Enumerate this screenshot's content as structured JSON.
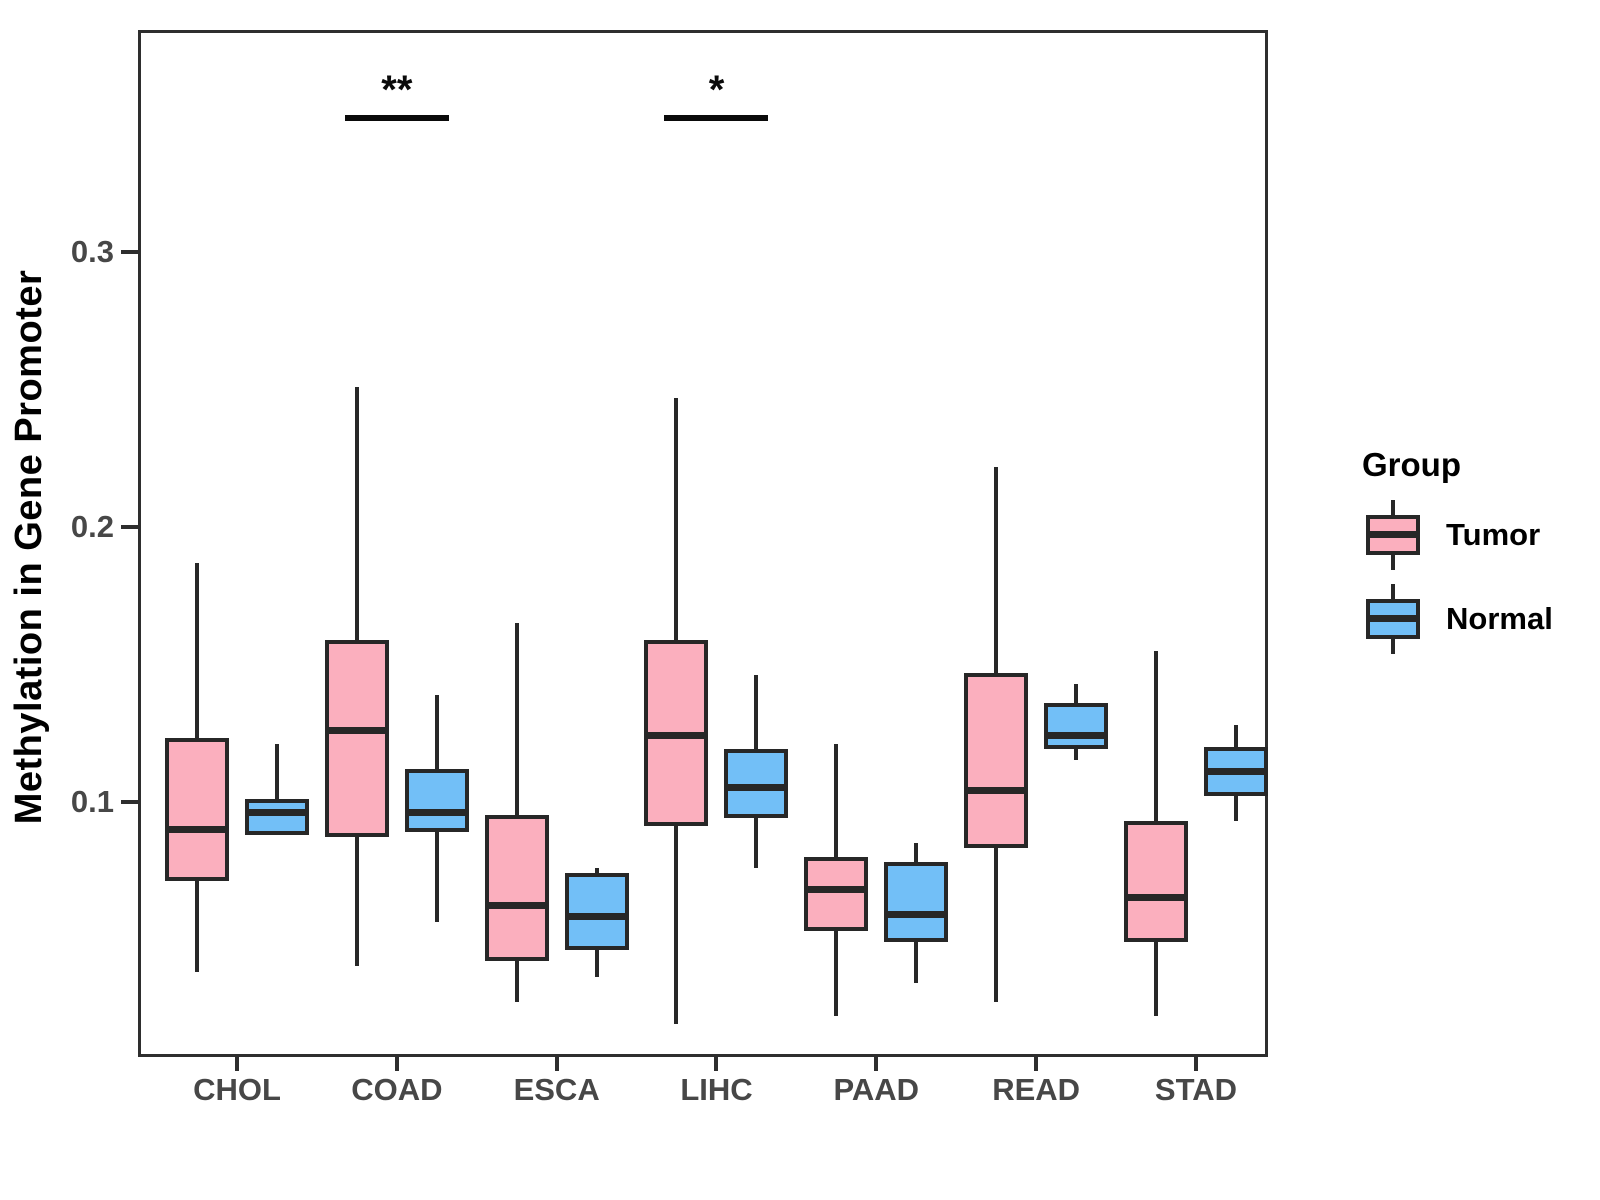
{
  "chart_data": {
    "type": "boxplot",
    "title": "",
    "ylabel": "Methylation in Gene Promoter",
    "xlabel": "",
    "categories": [
      "CHOL",
      "COAD",
      "ESCA",
      "LIHC",
      "PAAD",
      "READ",
      "STAD"
    ],
    "y_ticks": [
      {
        "label": "0.1",
        "value": 0.1
      },
      {
        "label": "0.2",
        "value": 0.2
      },
      {
        "label": "0.3",
        "value": 0.3
      }
    ],
    "ylim": [
      0.007,
      0.381
    ],
    "grid": "off",
    "box_outline_color": "#272727",
    "legend": {
      "title": "Group",
      "position": "right",
      "entries": [
        {
          "label": "Tumor",
          "color": "#FBAFBE"
        },
        {
          "label": "Normal",
          "color": "#72BFF7"
        }
      ]
    },
    "series": [
      {
        "name": "Tumor",
        "color": "#FBAFBE",
        "boxes": [
          {
            "category": "CHOL",
            "whisker_low": 0.038,
            "q1": 0.071,
            "median": 0.09,
            "q3": 0.123,
            "whisker_high": 0.187
          },
          {
            "category": "COAD",
            "whisker_low": 0.04,
            "q1": 0.087,
            "median": 0.126,
            "q3": 0.159,
            "whisker_high": 0.251
          },
          {
            "category": "ESCA",
            "whisker_low": 0.027,
            "q1": 0.042,
            "median": 0.062,
            "q3": 0.095,
            "whisker_high": 0.165
          },
          {
            "category": "LIHC",
            "whisker_low": 0.019,
            "q1": 0.091,
            "median": 0.124,
            "q3": 0.159,
            "whisker_high": 0.247
          },
          {
            "category": "PAAD",
            "whisker_low": 0.022,
            "q1": 0.053,
            "median": 0.068,
            "q3": 0.08,
            "whisker_high": 0.121
          },
          {
            "category": "READ",
            "whisker_low": 0.027,
            "q1": 0.083,
            "median": 0.104,
            "q3": 0.147,
            "whisker_high": 0.222
          },
          {
            "category": "STAD",
            "whisker_low": 0.022,
            "q1": 0.049,
            "median": 0.065,
            "q3": 0.093,
            "whisker_high": 0.155
          }
        ]
      },
      {
        "name": "Normal",
        "color": "#72BFF7",
        "boxes": [
          {
            "category": "CHOL",
            "whisker_low": 0.088,
            "q1": 0.088,
            "median": 0.096,
            "q3": 0.101,
            "whisker_high": 0.121
          },
          {
            "category": "COAD",
            "whisker_low": 0.056,
            "q1": 0.089,
            "median": 0.096,
            "q3": 0.112,
            "whisker_high": 0.139
          },
          {
            "category": "ESCA",
            "whisker_low": 0.036,
            "q1": 0.046,
            "median": 0.058,
            "q3": 0.074,
            "whisker_high": 0.076
          },
          {
            "category": "LIHC",
            "whisker_low": 0.076,
            "q1": 0.094,
            "median": 0.105,
            "q3": 0.119,
            "whisker_high": 0.146
          },
          {
            "category": "PAAD",
            "whisker_low": 0.034,
            "q1": 0.049,
            "median": 0.059,
            "q3": 0.078,
            "whisker_high": 0.085
          },
          {
            "category": "READ",
            "whisker_low": 0.115,
            "q1": 0.119,
            "median": 0.124,
            "q3": 0.136,
            "whisker_high": 0.143
          },
          {
            "category": "STAD",
            "whisker_low": 0.093,
            "q1": 0.102,
            "median": 0.111,
            "q3": 0.12,
            "whisker_high": 0.128
          }
        ]
      }
    ],
    "significance": [
      {
        "category": "COAD",
        "label": "**",
        "bar_value": 0.35
      },
      {
        "category": "LIHC",
        "label": "*",
        "bar_value": 0.35
      }
    ]
  }
}
